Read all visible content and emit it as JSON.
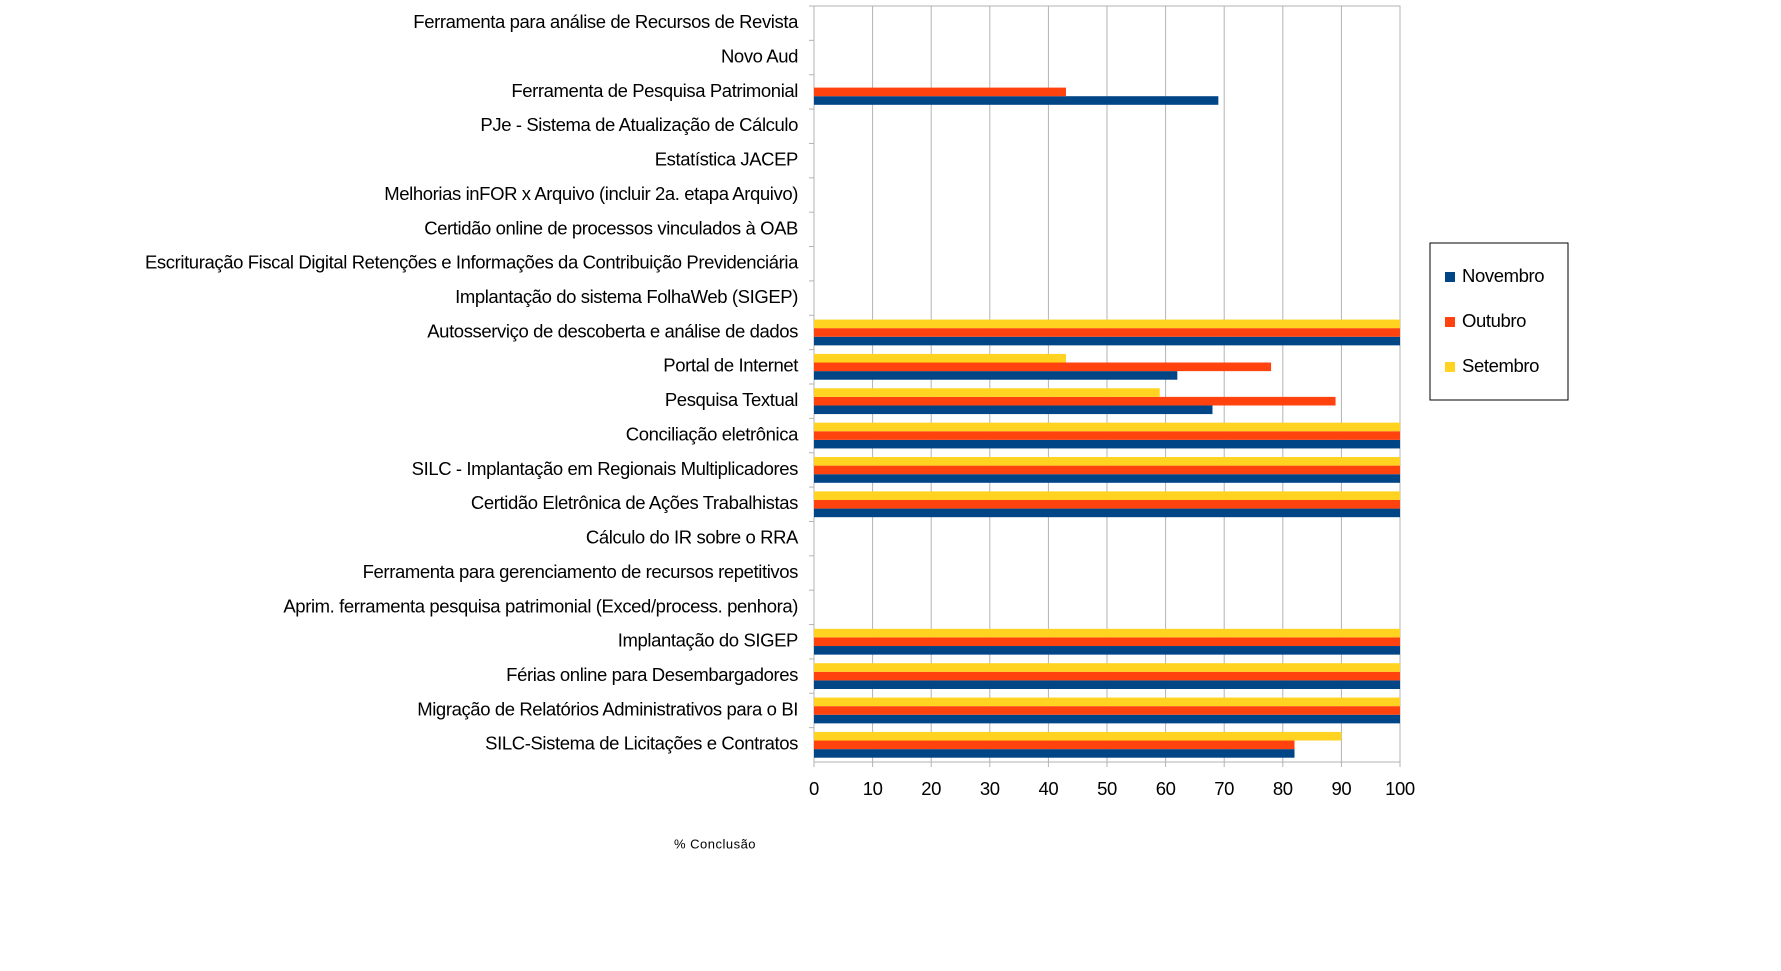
{
  "chart_data": {
    "type": "barh",
    "x_label": "% Conclusão",
    "categories": [
      "Ferramenta para análise de Recursos de Revista",
      "Novo Aud",
      "Ferramenta de Pesquisa Patrimonial",
      "PJe - Sistema de Atualização de Cálculo",
      "Estatística JACEP",
      "Melhorias inFOR x Arquivo (incluir 2a. etapa Arquivo)",
      "Certidão online de processos vinculados à OAB",
      "Escrituração Fiscal Digital Retenções e Informações da Contribuição Previdenciária",
      "Implantação do sistema FolhaWeb (SIGEP)",
      "Autosserviço de descoberta e análise de dados",
      "Portal de Internet",
      "Pesquisa Textual",
      "Conciliação eletrônica",
      "SILC - Implantação em Regionais Multiplicadores",
      "Certidão Eletrônica de Ações Trabalhistas",
      "Cálculo do IR sobre o RRA",
      "Ferramenta para gerenciamento de recursos repetitivos",
      "Aprim. ferramenta pesquisa patrimonial (Exced/process. penhora)",
      "Implantação do SIGEP",
      "Férias online para Desembargadores",
      "Migração de Relatórios Administrativos para o BI",
      "SILC-Sistema de Licitações e Contratos"
    ],
    "series": [
      {
        "name": "Novembro",
        "color": "#004586",
        "values": [
          null,
          null,
          69,
          null,
          null,
          null,
          null,
          null,
          null,
          100,
          62,
          68,
          100,
          100,
          100,
          null,
          null,
          null,
          100,
          100,
          100,
          82
        ]
      },
      {
        "name": "Outubro",
        "color": "#ff420e",
        "values": [
          null,
          null,
          43,
          null,
          null,
          null,
          null,
          null,
          null,
          100,
          78,
          89,
          100,
          100,
          100,
          null,
          null,
          null,
          100,
          100,
          100,
          82
        ]
      },
      {
        "name": "Setembro",
        "color": "#ffd320",
        "values": [
          null,
          null,
          null,
          null,
          null,
          null,
          null,
          null,
          null,
          100,
          43,
          59,
          100,
          100,
          100,
          null,
          null,
          null,
          100,
          100,
          100,
          90
        ]
      }
    ],
    "xlim": [
      0,
      100
    ],
    "xticks": [
      0,
      10,
      20,
      30,
      40,
      50,
      60,
      70,
      80,
      90,
      100
    ],
    "grid": true,
    "legend": "right"
  }
}
